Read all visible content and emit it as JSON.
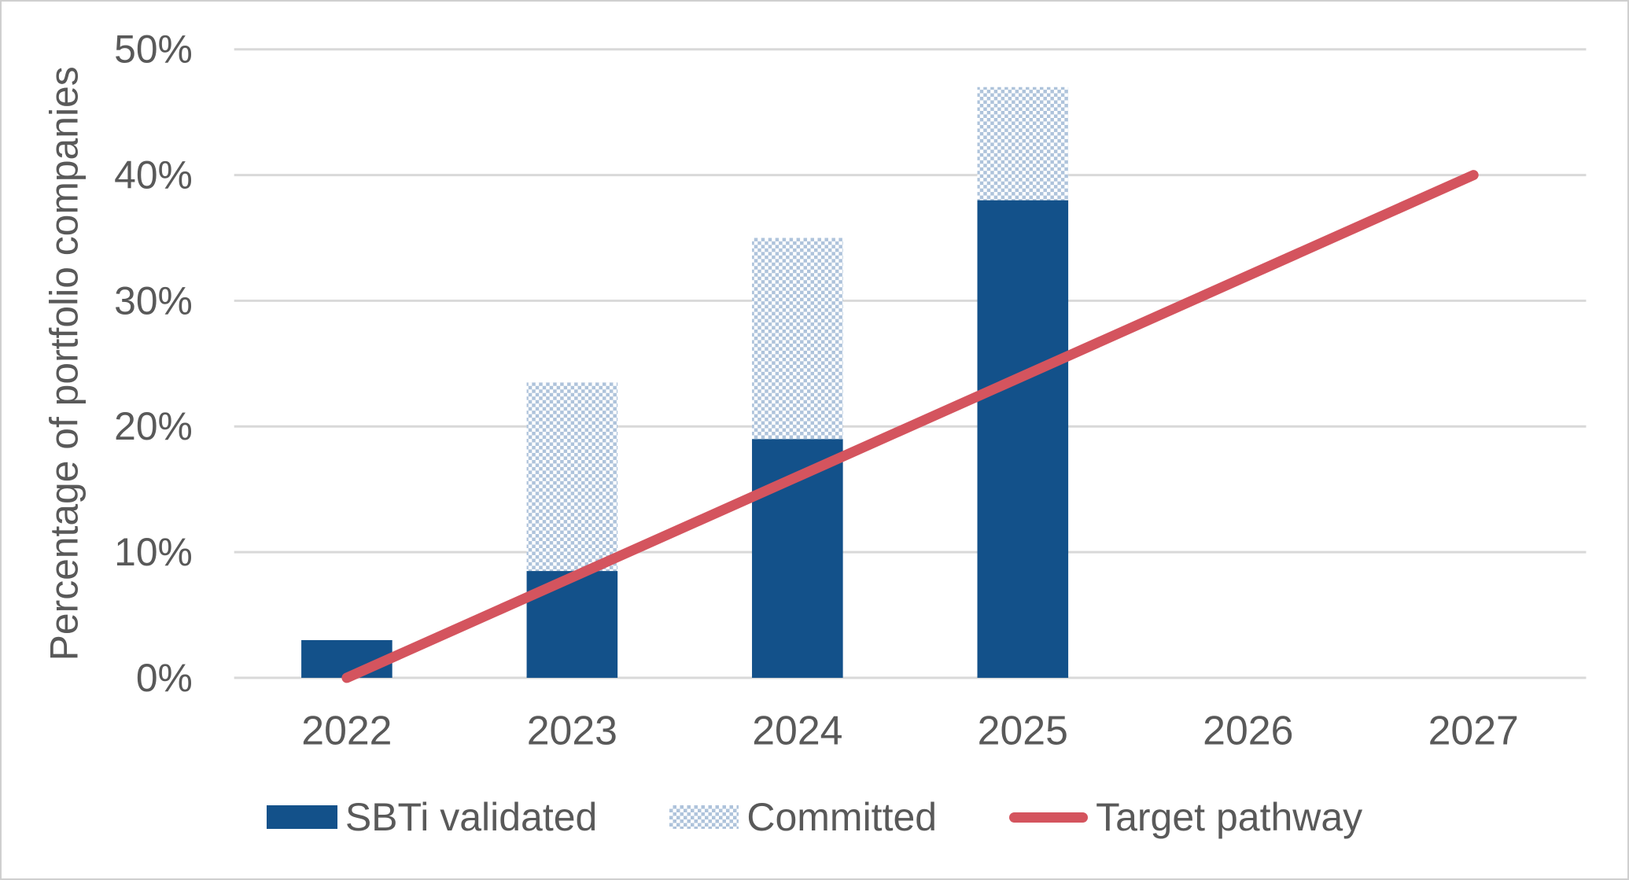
{
  "colors": {
    "sbti_validated": "#13518A",
    "committed_pattern": "#AEC3DB",
    "target_pathway": "#D4545E",
    "gridline": "#D9D9D9",
    "axis_text": "#595959",
    "chart_border": "#CFCFCF",
    "background": "#FFFFFF"
  },
  "chart_data": {
    "type": "bar",
    "stacked": true,
    "title": "",
    "xlabel": "",
    "ylabel": "Percentage of portfolio companies",
    "categories": [
      "2022",
      "2023",
      "2024",
      "2025",
      "2026",
      "2027"
    ],
    "series": [
      {
        "name": "SBTi validated",
        "type": "bar",
        "style": "solid",
        "values": [
          3,
          8.5,
          19,
          38,
          null,
          null
        ]
      },
      {
        "name": "Committed",
        "type": "bar",
        "style": "checker-pattern",
        "values": [
          0,
          15,
          16,
          9,
          null,
          null
        ]
      },
      {
        "name": "Target pathway",
        "type": "line",
        "points": [
          {
            "x": "2022",
            "y": 0
          },
          {
            "x": "2027",
            "y": 40
          }
        ]
      }
    ],
    "y_axis": {
      "min": 0,
      "max": 50,
      "tick_step": 10,
      "tick_labels": [
        "0%",
        "10%",
        "20%",
        "30%",
        "40%",
        "50%"
      ],
      "gridlines": true
    },
    "legend": {
      "position": "bottom",
      "items": [
        "SBTi validated",
        "Committed",
        "Target pathway"
      ]
    }
  }
}
